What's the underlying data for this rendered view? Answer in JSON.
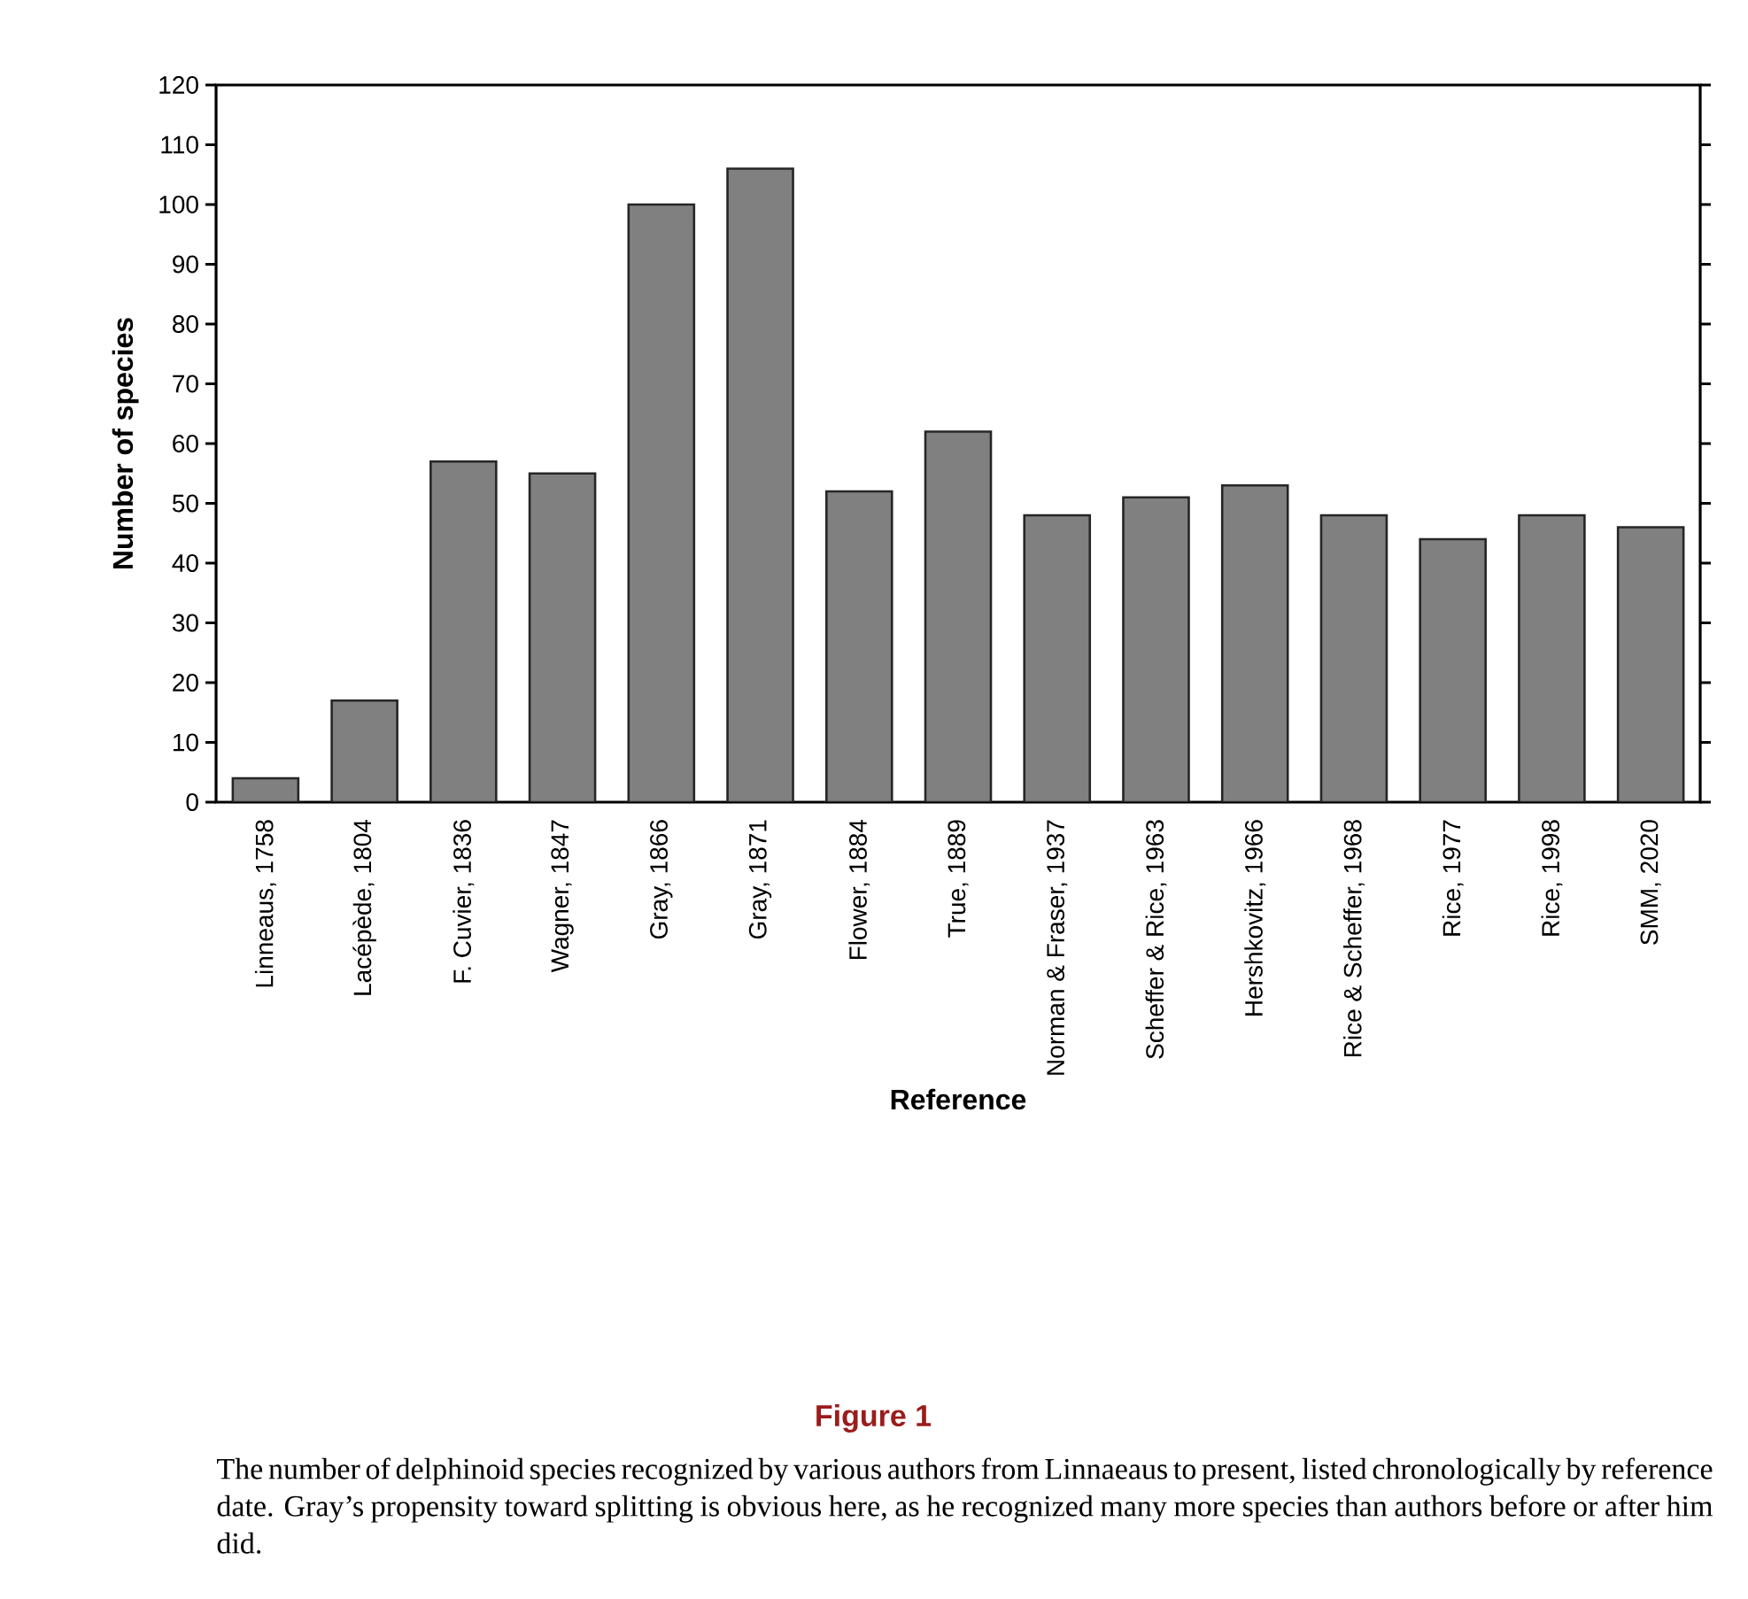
{
  "chart_data": {
    "type": "bar",
    "title": "Figure 1",
    "xlabel": "Reference",
    "ylabel": "Number of species",
    "categories": [
      "Linneaus, 1758",
      "Lacépède, 1804",
      "F. Cuvier, 1836",
      "Wagner, 1847",
      "Gray, 1866",
      "Gray, 1871",
      "Flower, 1884",
      "True, 1889",
      "Norman & Fraser, 1937",
      "Scheffer & Rice, 1963",
      "Hershkovitz, 1966",
      "Rice & Scheffer, 1968",
      "Rice, 1977",
      "Rice, 1998",
      "SMM, 2020"
    ],
    "values": [
      4,
      17,
      57,
      55,
      100,
      106,
      52,
      62,
      48,
      51,
      53,
      48,
      44,
      48,
      46
    ],
    "color": "#808080",
    "ylim": [
      0,
      120
    ],
    "yticks": [
      0,
      10,
      20,
      30,
      40,
      50,
      60,
      70,
      80,
      90,
      100,
      110,
      120
    ],
    "annotations": [
      "The number of delphinoid species recognized by various authors from Linnaeaus to present, listed chronologically by reference date. Gray’s propensity toward splitting is obvious here, as he recognized many more species than authors before or after him did."
    ]
  }
}
